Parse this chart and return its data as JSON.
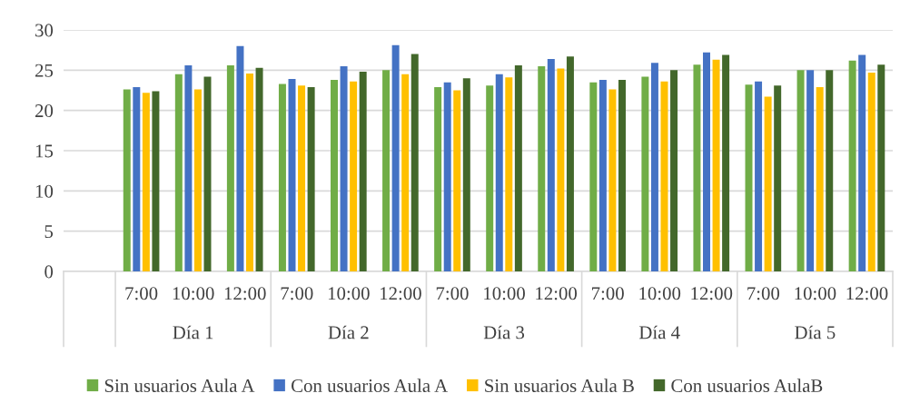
{
  "chart_data": {
    "type": "bar",
    "categories": [
      null,
      "7:00",
      "10:00",
      "12:00",
      "7:00",
      "10:00",
      "12:00",
      "7:00",
      "10:00",
      "12:00",
      "7:00",
      "10:00",
      "12:00",
      "7:00",
      "10:00",
      "12:00"
    ],
    "series": [
      {
        "name": "Sin usuarios Aula A",
        "color": "#70ad47",
        "values": [
          null,
          22.6,
          24.5,
          25.6,
          23.3,
          23.8,
          25.0,
          22.9,
          23.1,
          25.5,
          23.5,
          24.2,
          25.7,
          23.2,
          25.0,
          26.2
        ]
      },
      {
        "name": "Con usuarios Aula A",
        "color": "#4472c4",
        "values": [
          null,
          22.9,
          25.6,
          28.0,
          23.9,
          25.5,
          28.1,
          23.5,
          24.5,
          26.4,
          23.8,
          25.9,
          27.2,
          23.6,
          25.0,
          26.9
        ]
      },
      {
        "name": "Sin usuarios Aula B",
        "color": "#ffc000",
        "values": [
          null,
          22.2,
          22.6,
          24.6,
          23.1,
          23.6,
          24.5,
          22.5,
          24.1,
          25.2,
          22.6,
          23.6,
          26.3,
          21.7,
          22.9,
          24.7
        ]
      },
      {
        "name": "Con usuarios AulaB",
        "color": "#43682b",
        "values": [
          null,
          22.4,
          24.2,
          25.3,
          22.9,
          24.8,
          27.0,
          24.0,
          25.6,
          26.7,
          23.8,
          25.0,
          26.9,
          23.1,
          25.0,
          25.7
        ]
      }
    ],
    "annotations": [
      "Día 1",
      "Día 2",
      "Día 3",
      "Día 4",
      "Día 5"
    ],
    "ylim": [
      0,
      30
    ],
    "yticks": [
      0,
      5,
      10,
      15,
      20,
      25,
      30
    ],
    "grid": "y",
    "legend": "bottom"
  }
}
